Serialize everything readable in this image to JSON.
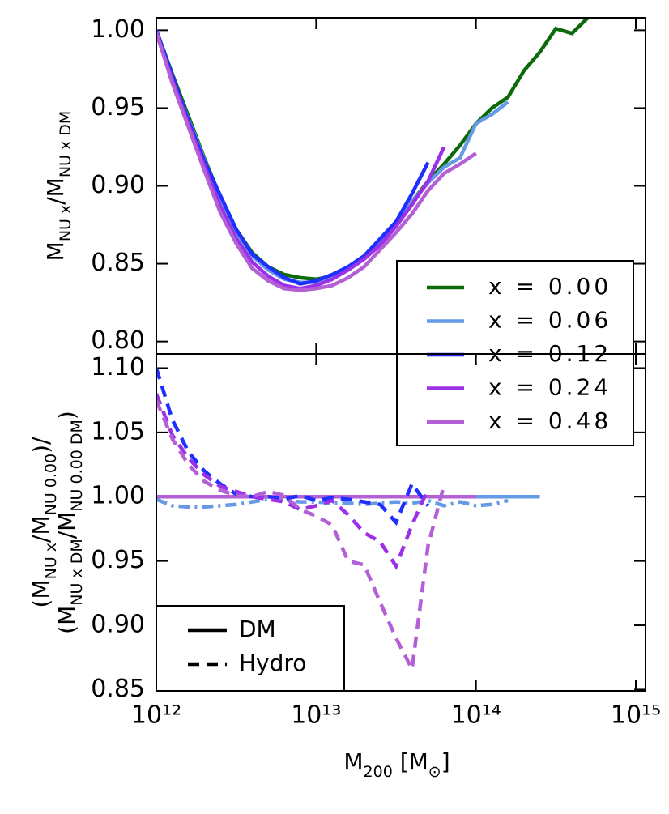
{
  "chart_data": {
    "type": "line",
    "xscale": "log",
    "x": [
      1000000000000.0,
      1259000000000.0,
      1585000000000.0,
      1995000000000.0,
      2512000000000.0,
      3162000000000.0,
      3981000000000.0,
      5012000000000.0,
      6310000000000.0,
      7943000000000.0,
      10000000000000.0,
      12590000000000.0,
      15850000000000.0,
      19950000000000.0,
      25120000000000.0,
      31620000000000.0,
      39810000000000.0,
      50120000000000.0,
      63100000000000.0,
      79430000000000.0,
      100000000000000.0,
      125900000000000.0,
      158500000000000.0,
      199500000000000.0,
      251200000000000.0,
      316200000000000.0,
      398100000000000.0,
      501200000000000.0
    ],
    "xlim": [
      1000000000000.0,
      1150000000000000.0
    ],
    "xticks": [
      {
        "value": 1000000000000.0,
        "label": "10¹²"
      },
      {
        "value": 10000000000000.0,
        "label": "10¹³"
      },
      {
        "value": 100000000000000.0,
        "label": "10¹⁴"
      },
      {
        "value": 1000000000000000.0,
        "label": "10¹⁵"
      }
    ],
    "xlabel": [
      {
        "text": "M"
      },
      {
        "text": "200",
        "sub": true
      },
      {
        "text": " [M"
      },
      {
        "text": "⊙",
        "sub": true
      },
      {
        "text": "]"
      }
    ],
    "panels": [
      {
        "ylabel": [
          [
            {
              "text": "M"
            },
            {
              "text": "NU x",
              "sub": true
            },
            {
              "text": "/M"
            },
            {
              "text": "NU x DM",
              "sub": true
            }
          ]
        ],
        "ylim": [
          0.792,
          1.008
        ],
        "yticks": [
          {
            "value": 0.8,
            "label": "0.80"
          },
          {
            "value": 0.85,
            "label": "0.85"
          },
          {
            "value": 0.9,
            "label": "0.90"
          },
          {
            "value": 0.95,
            "label": "0.95"
          },
          {
            "value": 1.0,
            "label": "1.00"
          }
        ],
        "legend": "upper-right-box",
        "series": [
          {
            "name": "x = 0.00",
            "color": "#0b6b0b",
            "dash": "solid",
            "values": [
              1.0,
              0.972,
              0.945,
              0.918,
              0.893,
              0.872,
              0.857,
              0.848,
              0.843,
              0.841,
              0.84,
              0.842,
              0.847,
              0.854,
              0.864,
              0.876,
              0.89,
              0.903,
              0.914,
              0.926,
              0.94,
              0.95,
              0.957,
              0.974,
              0.986,
              1.001,
              0.998,
              1.008
            ]
          },
          {
            "name": "x = 0.06",
            "color": "#6699e6",
            "dash": "solid",
            "values": [
              1.0,
              0.97,
              0.943,
              0.917,
              0.892,
              0.87,
              0.855,
              0.846,
              0.84,
              0.838,
              0.838,
              0.841,
              0.846,
              0.853,
              0.863,
              0.876,
              0.89,
              0.902,
              0.912,
              0.918,
              0.94,
              0.946,
              0.954,
              null,
              null,
              null,
              null,
              null
            ]
          },
          {
            "name": "x = 0.12",
            "color": "#1f2fff",
            "dash": "solid",
            "values": [
              1.0,
              0.971,
              0.942,
              0.916,
              0.894,
              0.872,
              0.856,
              0.848,
              0.841,
              0.837,
              0.839,
              0.843,
              0.848,
              0.855,
              0.866,
              0.877,
              0.895,
              0.915,
              null,
              null,
              null,
              null,
              null,
              null,
              null,
              null,
              null,
              null
            ]
          },
          {
            "name": "x = 0.24",
            "color": "#9b30e8",
            "dash": "solid",
            "values": [
              0.998,
              0.968,
              0.94,
              0.913,
              0.887,
              0.866,
              0.851,
              0.842,
              0.836,
              0.834,
              0.836,
              0.84,
              0.846,
              0.853,
              0.862,
              0.874,
              0.888,
              0.903,
              0.925,
              null,
              null,
              null,
              null,
              null,
              null,
              null,
              null,
              null
            ]
          },
          {
            "name": "x = 0.48",
            "color": "#b35fd6",
            "dash": "solid",
            "values": [
              0.999,
              0.966,
              0.938,
              0.91,
              0.883,
              0.863,
              0.847,
              0.839,
              0.834,
              0.833,
              0.834,
              0.836,
              0.841,
              0.848,
              0.859,
              0.87,
              0.882,
              0.897,
              0.908,
              0.914,
              0.921,
              null,
              null,
              null,
              null,
              null,
              null,
              null
            ]
          }
        ]
      },
      {
        "ylabel": [
          [
            {
              "text": "(M"
            },
            {
              "text": "NU x",
              "sub": true
            },
            {
              "text": "/M"
            },
            {
              "text": "NU 0.00",
              "sub": true
            },
            {
              "text": ")/"
            }
          ],
          [
            {
              "text": "(M"
            },
            {
              "text": "NU x DM",
              "sub": true
            },
            {
              "text": "/M"
            },
            {
              "text": "NU 0.00 DM",
              "sub": true
            },
            {
              "text": ")"
            }
          ]
        ],
        "ylim": [
          0.849,
          1.111
        ],
        "yticks": [
          {
            "value": 0.85,
            "label": "0.85"
          },
          {
            "value": 0.9,
            "label": "0.90"
          },
          {
            "value": 0.95,
            "label": "0.95"
          },
          {
            "value": 1.0,
            "label": "1.00"
          },
          {
            "value": 1.05,
            "label": "1.05"
          },
          {
            "value": 1.1,
            "label": "1.10"
          }
        ],
        "legend": "lower-left-box",
        "styles": [
          {
            "name": "DM",
            "dash": "solid"
          },
          {
            "name": "Hydro",
            "dash": "dashed"
          }
        ],
        "series": [
          {
            "color": "#0b6b0b",
            "dash": "solid",
            "values": [
              1,
              1,
              1,
              1,
              1,
              1,
              1,
              1,
              1,
              1,
              1,
              1,
              1,
              1,
              1,
              1,
              1,
              1,
              1,
              1,
              1,
              1,
              1,
              1,
              null,
              null,
              null,
              null
            ]
          },
          {
            "color": "#6699e6",
            "dash": "solid",
            "values": [
              1,
              1,
              1,
              1,
              1,
              1,
              1,
              1,
              1,
              1,
              1,
              1,
              1,
              1,
              1,
              1,
              1,
              1,
              1,
              1,
              1,
              1,
              1,
              1,
              1,
              null,
              null,
              null
            ]
          },
          {
            "color": "#1f2fff",
            "dash": "solid",
            "values": [
              1,
              1,
              1,
              1,
              1,
              1,
              1,
              1,
              1,
              1,
              1,
              1,
              1,
              1,
              1,
              1,
              1,
              1,
              null,
              null,
              null,
              null,
              null,
              null,
              null,
              null,
              null,
              null
            ]
          },
          {
            "color": "#9b30e8",
            "dash": "solid",
            "values": [
              1,
              1,
              1,
              1,
              1,
              1,
              1,
              1,
              1,
              1,
              1,
              1,
              1,
              1,
              1,
              1,
              1,
              1,
              1,
              null,
              null,
              null,
              null,
              null,
              null,
              null,
              null,
              null
            ]
          },
          {
            "color": "#b35fd6",
            "dash": "solid",
            "values": [
              1,
              1,
              1,
              1,
              1,
              1,
              1,
              1,
              1,
              1,
              1,
              1,
              1,
              1,
              1,
              1,
              1,
              1,
              1,
              1,
              1,
              null,
              null,
              null,
              null,
              null,
              null,
              null
            ]
          },
          {
            "color": "#6699e6",
            "dash": "dashdot",
            "values": [
              0.998,
              0.993,
              0.992,
              0.992,
              0.993,
              0.994,
              0.996,
              0.998,
              0.997,
              0.996,
              0.996,
              0.995,
              0.995,
              0.994,
              0.995,
              0.996,
              0.995,
              0.997,
              0.993,
              0.996,
              0.993,
              0.994,
              0.997,
              null,
              null,
              null,
              null,
              null
            ]
          },
          {
            "color": "#1f2fff",
            "dash": "dashed",
            "values": [
              1.1,
              1.06,
              1.035,
              1.02,
              1.01,
              1.002,
              1.0,
              1.0,
              0.998,
              1.001,
              0.997,
              0.999,
              0.998,
              0.996,
              0.994,
              0.98,
              1.01,
              0.993,
              null,
              null,
              null,
              null,
              null,
              null,
              null,
              null,
              null,
              null
            ]
          },
          {
            "color": "#9b30e8",
            "dash": "dashed",
            "values": [
              1.08,
              1.048,
              1.03,
              1.017,
              1.008,
              1.004,
              1.0,
              0.998,
              0.996,
              0.99,
              0.993,
              0.997,
              0.986,
              0.972,
              0.965,
              0.946,
              0.978,
              1.006,
              null,
              null,
              null,
              null,
              null,
              null,
              null,
              null,
              null,
              null
            ]
          },
          {
            "color": "#b35fd6",
            "dash": "dashed",
            "values": [
              1.075,
              1.045,
              1.025,
              1.012,
              1.005,
              1.001,
              1.0,
              1.004,
              1.001,
              0.99,
              0.985,
              0.978,
              0.95,
              0.947,
              0.918,
              0.89,
              0.866,
              0.962,
              1.009,
              null,
              null,
              null,
              null,
              null,
              null,
              null,
              null,
              null
            ]
          }
        ]
      }
    ]
  }
}
